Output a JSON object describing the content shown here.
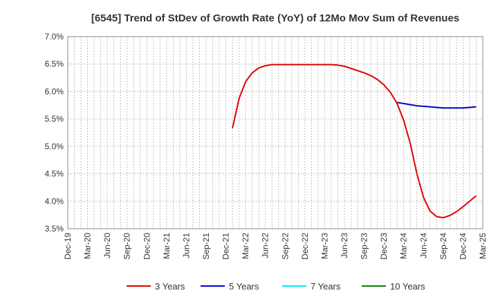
{
  "chart_data": {
    "type": "line",
    "title": "[6545]  Trend of StDev of Growth Rate (YoY) of 12Mo Mov Sum of Revenues",
    "xlabel": "",
    "ylabel": "",
    "x_ticks": [
      "Dec-19",
      "Mar-20",
      "Jun-20",
      "Sep-20",
      "Dec-20",
      "Mar-21",
      "Jun-21",
      "Sep-21",
      "Dec-21",
      "Mar-22",
      "Jun-22",
      "Sep-22",
      "Dec-22",
      "Mar-23",
      "Jun-23",
      "Sep-23",
      "Dec-23",
      "Mar-24",
      "Jun-24",
      "Sep-24",
      "Dec-24",
      "Mar-25"
    ],
    "y_ticks": [
      "3.5%",
      "4.0%",
      "4.5%",
      "5.0%",
      "5.5%",
      "6.0%",
      "6.5%",
      "7.0%"
    ],
    "ylim": [
      3.5,
      7.0
    ],
    "grid": true,
    "legend_position": "bottom",
    "series": [
      {
        "name": "3 Years",
        "color": "#dd0000",
        "points": [
          [
            "Jan-22",
            5.33
          ],
          [
            "Feb-22",
            5.87
          ],
          [
            "Mar-22",
            6.18
          ],
          [
            "Apr-22",
            6.34
          ],
          [
            "May-22",
            6.43
          ],
          [
            "Jun-22",
            6.47
          ],
          [
            "Jul-22",
            6.49
          ],
          [
            "Aug-22",
            6.49
          ],
          [
            "Sep-22",
            6.49
          ],
          [
            "Oct-22",
            6.49
          ],
          [
            "Nov-22",
            6.49
          ],
          [
            "Dec-22",
            6.49
          ],
          [
            "Jan-23",
            6.49
          ],
          [
            "Feb-23",
            6.49
          ],
          [
            "Mar-23",
            6.49
          ],
          [
            "Apr-23",
            6.49
          ],
          [
            "May-23",
            6.48
          ],
          [
            "Jun-23",
            6.46
          ],
          [
            "Jul-23",
            6.42
          ],
          [
            "Aug-23",
            6.38
          ],
          [
            "Sep-23",
            6.34
          ],
          [
            "Oct-23",
            6.29
          ],
          [
            "Nov-23",
            6.22
          ],
          [
            "Dec-23",
            6.12
          ],
          [
            "Jan-24",
            5.98
          ],
          [
            "Feb-24",
            5.78
          ],
          [
            "Mar-24",
            5.47
          ],
          [
            "Apr-24",
            5.05
          ],
          [
            "May-24",
            4.5
          ],
          [
            "Jun-24",
            4.07
          ],
          [
            "Jul-24",
            3.82
          ],
          [
            "Aug-24",
            3.72
          ],
          [
            "Sep-24",
            3.7
          ],
          [
            "Oct-24",
            3.74
          ],
          [
            "Nov-24",
            3.81
          ],
          [
            "Dec-24",
            3.9
          ],
          [
            "Jan-25",
            4.0
          ],
          [
            "Feb-25",
            4.1
          ]
        ]
      },
      {
        "name": "5 Years",
        "color": "#0000cc",
        "points": [
          [
            "Feb-24",
            5.8
          ],
          [
            "Mar-24",
            5.78
          ],
          [
            "Apr-24",
            5.76
          ],
          [
            "May-24",
            5.74
          ],
          [
            "Jun-24",
            5.73
          ],
          [
            "Jul-24",
            5.72
          ],
          [
            "Aug-24",
            5.71
          ],
          [
            "Sep-24",
            5.7
          ],
          [
            "Oct-24",
            5.7
          ],
          [
            "Nov-24",
            5.7
          ],
          [
            "Dec-24",
            5.7
          ],
          [
            "Jan-25",
            5.71
          ],
          [
            "Feb-25",
            5.72
          ]
        ]
      },
      {
        "name": "7 Years",
        "color": "#00e5ee",
        "points": []
      },
      {
        "name": "10 Years",
        "color": "#008000",
        "points": []
      }
    ]
  }
}
